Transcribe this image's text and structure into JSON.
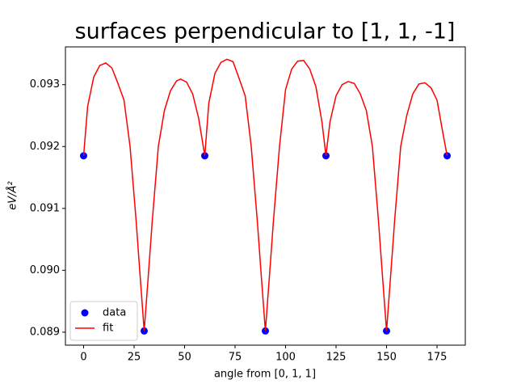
{
  "chart_data": {
    "type": "line",
    "title": "surfaces perpendicular to [1, 1, -1]",
    "xlabel": "angle from [0, 1, 1]",
    "ylabel": "eV/Å²",
    "xlim": [
      -9,
      189
    ],
    "ylim": [
      0.08879,
      0.09361
    ],
    "xticks": [
      0,
      25,
      50,
      75,
      100,
      125,
      150,
      175
    ],
    "yticks": [
      0.089,
      {
        "value": 0.09,
        "label": "0.090"
      },
      0.091,
      0.092,
      0.093
    ],
    "legend": "lower left",
    "series": [
      {
        "name": "data",
        "color": "#0000ff",
        "marker": "o",
        "line": false,
        "x": [
          0,
          30,
          60,
          90,
          120,
          150,
          180
        ],
        "values": [
          0.09185,
          0.08902,
          0.09185,
          0.08902,
          0.09185,
          0.08902,
          0.09185
        ]
      },
      {
        "name": "fit",
        "color": "#ff0000",
        "marker": null,
        "line": true,
        "x": [
          0,
          2,
          5,
          8,
          11,
          14,
          17,
          20,
          23,
          26,
          28,
          30,
          32,
          34,
          37,
          40,
          43,
          46,
          48,
          51,
          54,
          57,
          60,
          62,
          65,
          68,
          71,
          74,
          77,
          80,
          83,
          86,
          88,
          90,
          92,
          94,
          97,
          100,
          103,
          106,
          109,
          112,
          115,
          118,
          120,
          122,
          125,
          128,
          131,
          134,
          137,
          140,
          143,
          146,
          148,
          150,
          152,
          154,
          157,
          160,
          163,
          166,
          169,
          172,
          175,
          178,
          180
        ],
        "values": [
          0.09185,
          0.09265,
          0.09312,
          0.09331,
          0.09335,
          0.09327,
          0.09302,
          0.09275,
          0.092,
          0.0908,
          0.0899,
          0.08902,
          0.0899,
          0.0908,
          0.092,
          0.09258,
          0.0929,
          0.09306,
          0.09309,
          0.09304,
          0.09285,
          0.09245,
          0.09185,
          0.0927,
          0.09318,
          0.09336,
          0.09341,
          0.09337,
          0.0931,
          0.09282,
          0.092,
          0.0908,
          0.0899,
          0.08902,
          0.0899,
          0.0908,
          0.092,
          0.09292,
          0.09325,
          0.09338,
          0.09339,
          0.09325,
          0.09297,
          0.0924,
          0.09185,
          0.0924,
          0.09282,
          0.093,
          0.09305,
          0.09302,
          0.09285,
          0.09258,
          0.092,
          0.0908,
          0.0899,
          0.08902,
          0.0899,
          0.0908,
          0.092,
          0.0925,
          0.09285,
          0.09301,
          0.09303,
          0.09295,
          0.09275,
          0.0922,
          0.09185
        ]
      }
    ]
  }
}
